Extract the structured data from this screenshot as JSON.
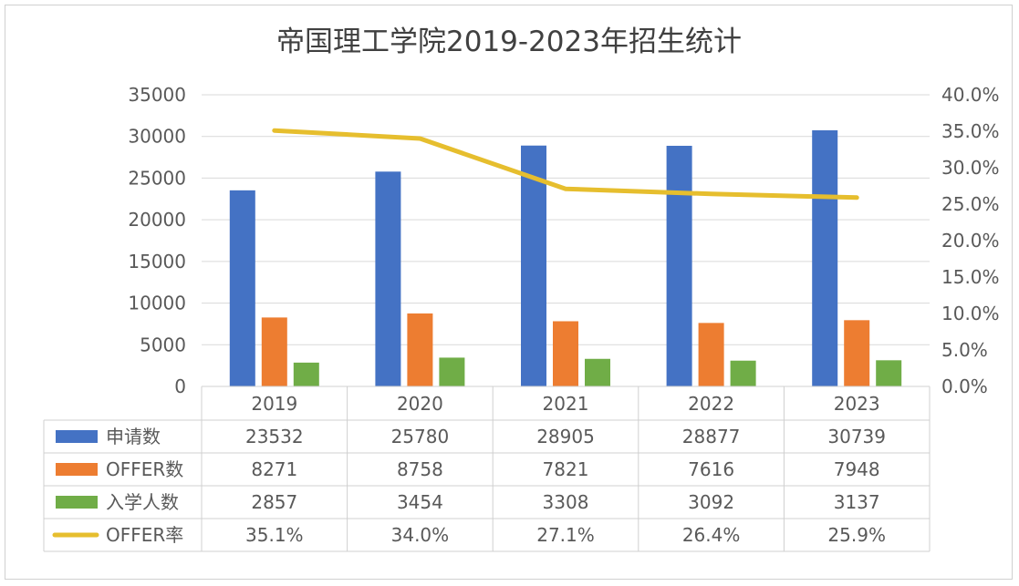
{
  "chart_data": {
    "type": "bar",
    "title": "帝国理工学院2019-2023年招生统计",
    "categories": [
      "2019",
      "2020",
      "2021",
      "2022",
      "2023"
    ],
    "series": [
      {
        "name": "申请数",
        "values": [
          23532,
          25780,
          28905,
          28877,
          30739
        ],
        "color": "#4472c4",
        "display": [
          "23532",
          "25780",
          "28905",
          "28877",
          "30739"
        ]
      },
      {
        "name": "OFFER数",
        "values": [
          8271,
          8758,
          7821,
          7616,
          7948
        ],
        "color": "#ed7d31",
        "display": [
          "8271",
          "8758",
          "7821",
          "7616",
          "7948"
        ]
      },
      {
        "name": "入学人数",
        "values": [
          2857,
          3454,
          3308,
          3092,
          3137
        ],
        "color": "#70ad47",
        "display": [
          "2857",
          "3454",
          "3308",
          "3092",
          "3137"
        ]
      }
    ],
    "line_series": {
      "name": "OFFER率",
      "values": [
        35.1,
        34.0,
        27.1,
        26.4,
        25.9
      ],
      "color": "#e6be2e",
      "display": [
        "35.1%",
        "34.0%",
        "27.1%",
        "26.4%",
        "25.9%"
      ],
      "axis": "right"
    },
    "ylim": [
      0,
      35000
    ],
    "yticks": [
      "0",
      "5000",
      "10000",
      "15000",
      "20000",
      "25000",
      "30000",
      "35000"
    ],
    "y2lim": [
      0,
      40
    ],
    "y2ticks": [
      "0.0%",
      "5.0%",
      "10.0%",
      "15.0%",
      "20.0%",
      "25.0%",
      "30.0%",
      "35.0%",
      "40.0%"
    ],
    "grid": true,
    "legend": "data-table"
  }
}
